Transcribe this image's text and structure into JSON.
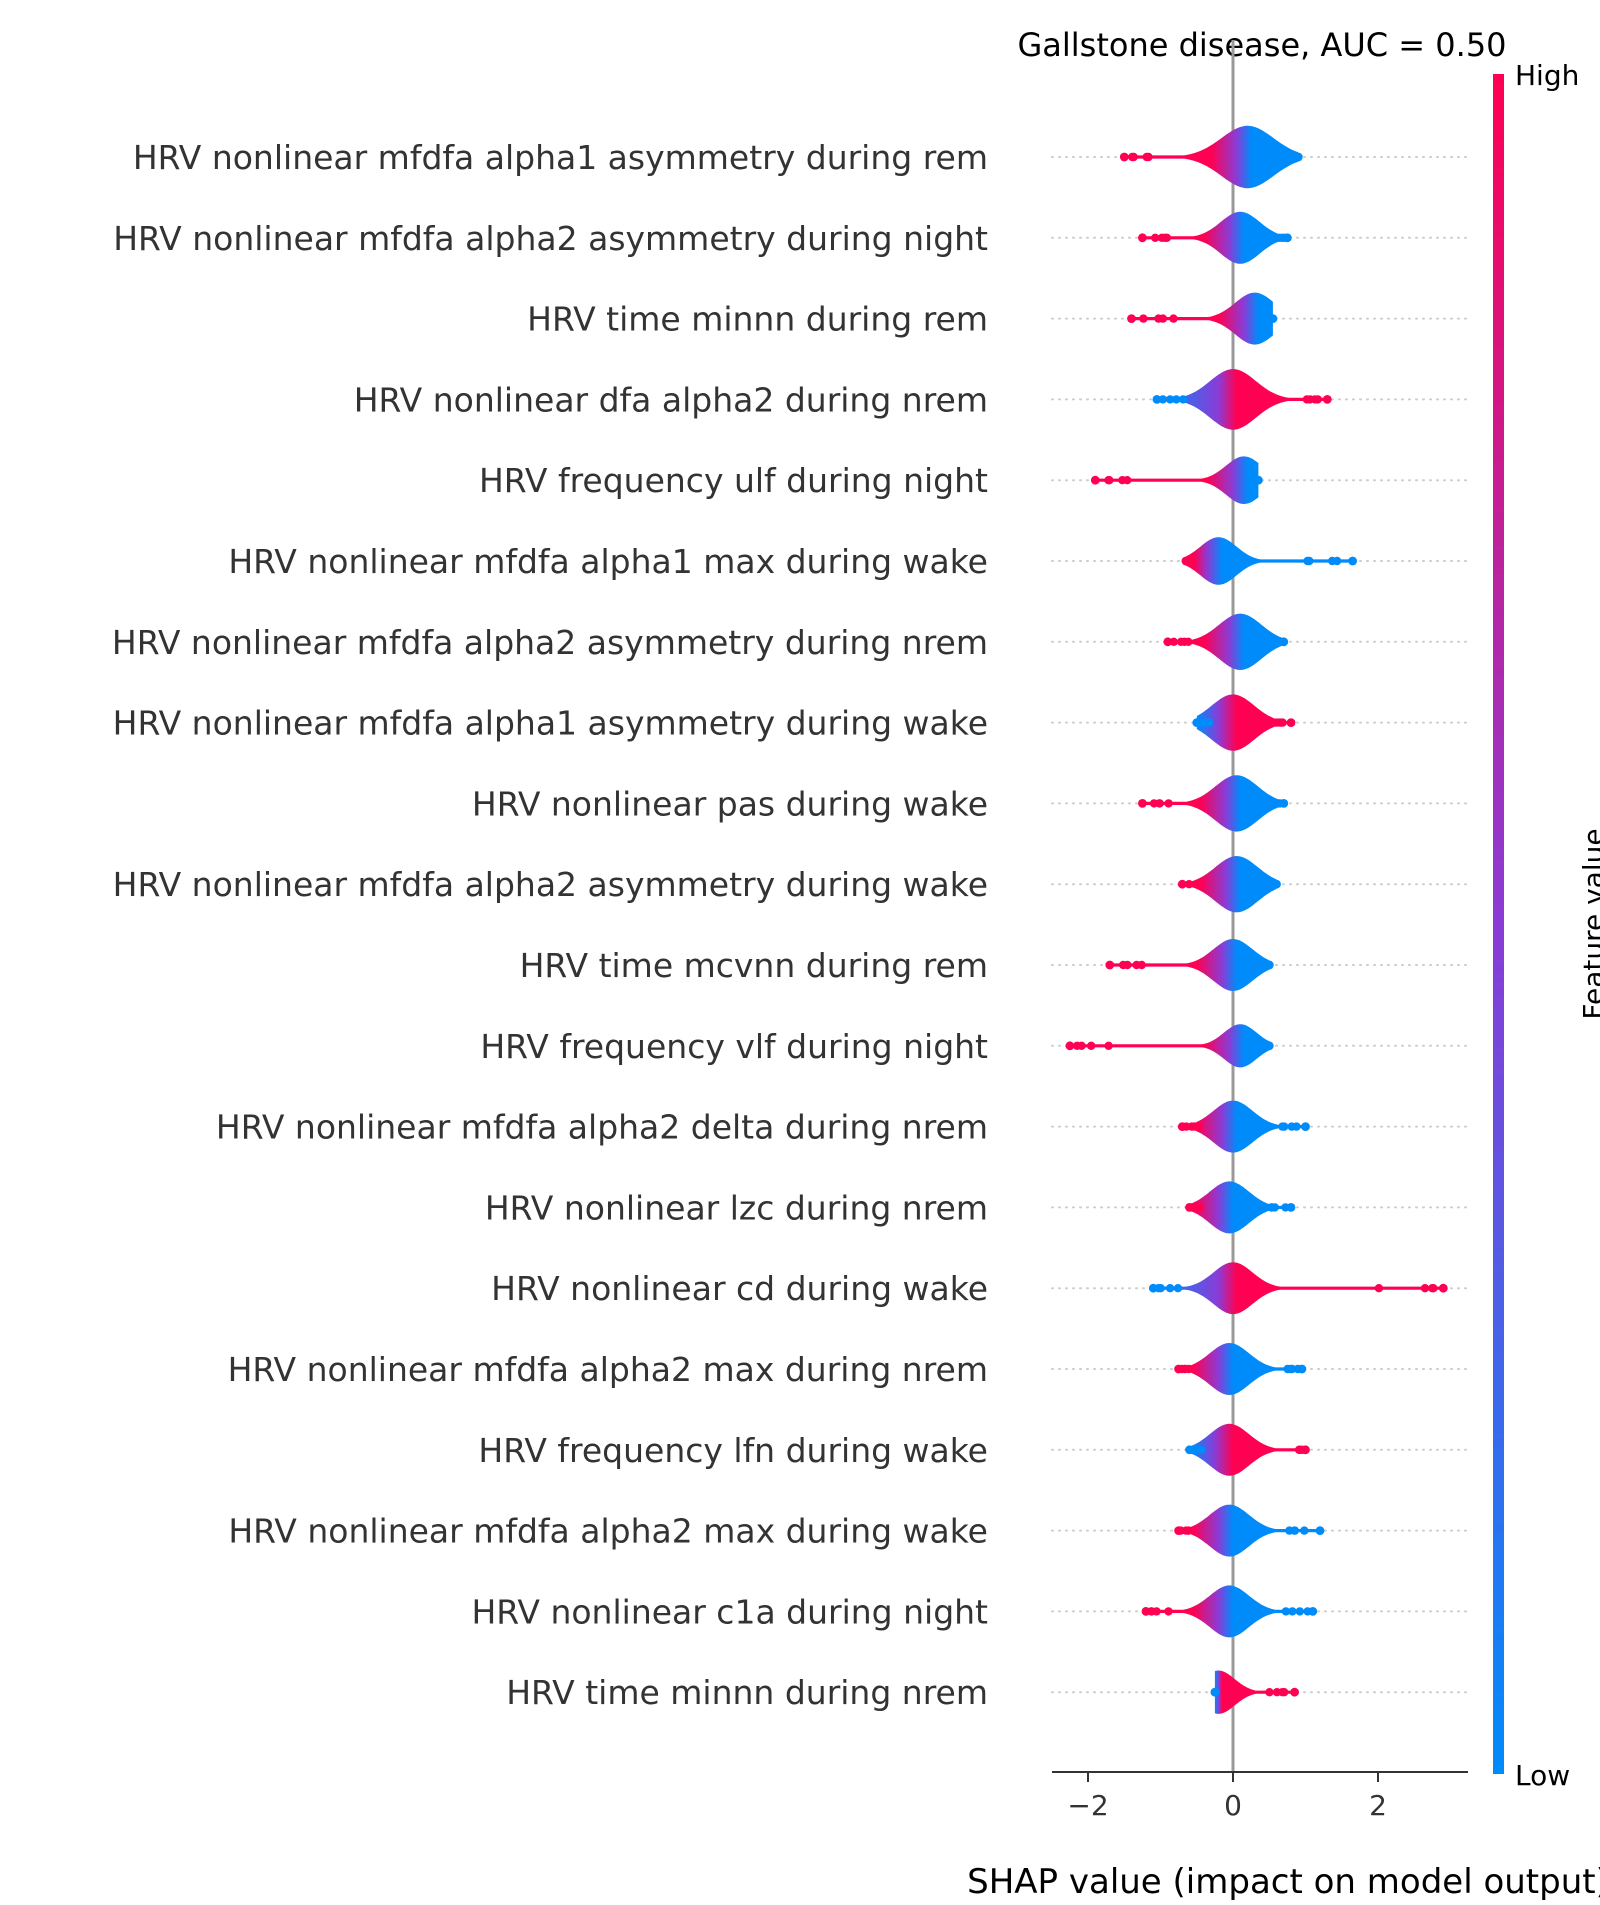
{
  "chart_data": {
    "type": "violin",
    "title": "Gallstone disease, AUC =  0.50",
    "xlabel": "SHAP value (impact on model output)",
    "x_ticks": [
      -2,
      0,
      2
    ],
    "x_tick_labels": [
      "−2",
      "0",
      "2"
    ],
    "xlim": [
      -2.45,
      3.2
    ],
    "colorbar": {
      "label": "Feature value",
      "high_label": "High",
      "low_label": "Low",
      "high_color": "#ff0052",
      "mid_color": "#8a3cd6",
      "low_color": "#008bfb"
    },
    "features": [
      {
        "name": "HRV nonlinear mfdfa alpha1 asymmetry during rem",
        "min": -1.5,
        "max": 0.9,
        "width": 0.8,
        "center": 0.2,
        "trend": "high_left"
      },
      {
        "name": "HRV nonlinear mfdfa alpha2 asymmetry during night",
        "min": -1.25,
        "max": 0.75,
        "width": 0.6,
        "center": 0.1,
        "trend": "high_left"
      },
      {
        "name": "HRV time minnn during rem",
        "min": -1.4,
        "max": 0.55,
        "width": 0.6,
        "center": 0.3,
        "trend": "high_left"
      },
      {
        "name": "HRV nonlinear dfa alpha2 during nrem",
        "min": -1.05,
        "max": 1.3,
        "width": 0.7,
        "center": 0.0,
        "trend": "high_right"
      },
      {
        "name": "HRV frequency ulf during night",
        "min": -1.9,
        "max": 0.35,
        "width": 0.55,
        "center": 0.15,
        "trend": "high_left"
      },
      {
        "name": "HRV nonlinear mfdfa alpha1 max during wake",
        "min": -0.65,
        "max": 1.65,
        "width": 0.55,
        "center": -0.2,
        "trend": "high_left"
      },
      {
        "name": "HRV nonlinear mfdfa alpha2 asymmetry during nrem",
        "min": -0.9,
        "max": 0.7,
        "width": 0.65,
        "center": 0.1,
        "trend": "high_left"
      },
      {
        "name": "HRV nonlinear mfdfa alpha1 asymmetry during wake",
        "min": -0.5,
        "max": 0.8,
        "width": 0.65,
        "center": 0.0,
        "trend": "high_right"
      },
      {
        "name": "HRV nonlinear pas during wake",
        "min": -1.25,
        "max": 0.7,
        "width": 0.65,
        "center": 0.05,
        "trend": "high_left"
      },
      {
        "name": "HRV nonlinear mfdfa alpha2 asymmetry during wake",
        "min": -0.7,
        "max": 0.6,
        "width": 0.65,
        "center": 0.05,
        "trend": "high_left"
      },
      {
        "name": "HRV time mcvnn during rem",
        "min": -1.7,
        "max": 0.5,
        "width": 0.6,
        "center": 0.0,
        "trend": "high_left"
      },
      {
        "name": "HRV frequency vlf during night",
        "min": -2.25,
        "max": 0.5,
        "width": 0.5,
        "center": 0.1,
        "trend": "high_left"
      },
      {
        "name": "HRV nonlinear mfdfa alpha2 delta during nrem",
        "min": -0.7,
        "max": 1.0,
        "width": 0.6,
        "center": 0.0,
        "trend": "high_left"
      },
      {
        "name": "HRV nonlinear lzc during nrem",
        "min": -0.6,
        "max": 0.8,
        "width": 0.6,
        "center": -0.05,
        "trend": "high_left"
      },
      {
        "name": "HRV nonlinear cd during wake",
        "min": -1.1,
        "max": 2.9,
        "width": 0.6,
        "center": 0.0,
        "trend": "high_right"
      },
      {
        "name": "HRV nonlinear mfdfa alpha2 max during nrem",
        "min": -0.75,
        "max": 0.95,
        "width": 0.6,
        "center": -0.05,
        "trend": "high_left"
      },
      {
        "name": "HRV frequency lfn during wake",
        "min": -0.6,
        "max": 1.0,
        "width": 0.6,
        "center": -0.05,
        "trend": "high_right"
      },
      {
        "name": "HRV nonlinear mfdfa alpha2 max during wake",
        "min": -0.75,
        "max": 1.2,
        "width": 0.6,
        "center": -0.05,
        "trend": "high_left"
      },
      {
        "name": "HRV nonlinear c1a during night",
        "min": -1.2,
        "max": 1.1,
        "width": 0.6,
        "center": -0.05,
        "trend": "high_left"
      },
      {
        "name": "HRV time minnn during nrem",
        "min": -0.25,
        "max": 0.85,
        "width": 0.5,
        "center": -0.2,
        "trend": "high_right"
      }
    ]
  }
}
